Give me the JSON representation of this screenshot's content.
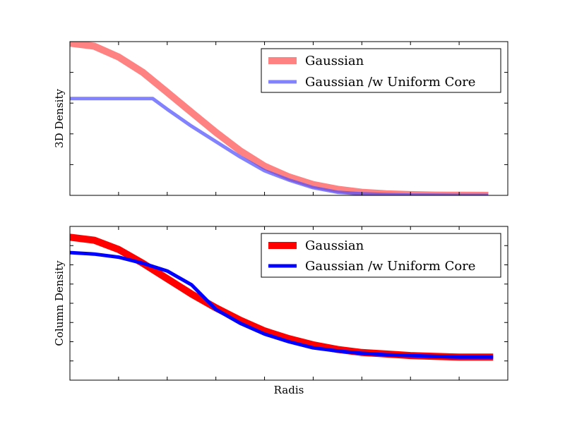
{
  "chart_data": [
    {
      "type": "line",
      "title": "",
      "xlabel": "",
      "ylabel": "3D Density",
      "xlim": [
        0,
        4.5
      ],
      "ylim": [
        0,
        1.0
      ],
      "grid": false,
      "legend": "top-right",
      "x_ticks": [
        0.5,
        1.0,
        1.5,
        2.0,
        2.5,
        3.0,
        3.5,
        4.0
      ],
      "y_ticks": [
        0.2,
        0.4,
        0.6,
        0.8,
        1.0
      ],
      "series": [
        {
          "name": "Gaussian",
          "color": "#ff4d4d",
          "style": "solid",
          "x": [
            0,
            0.25,
            0.5,
            0.75,
            1.0,
            1.25,
            1.5,
            1.75,
            2.0,
            2.25,
            2.5,
            2.75,
            3.0,
            3.25,
            3.5,
            3.75,
            4.0,
            4.3
          ],
          "y": [
            0.99,
            0.97,
            0.9,
            0.8,
            0.67,
            0.54,
            0.41,
            0.29,
            0.19,
            0.12,
            0.07,
            0.04,
            0.02,
            0.01,
            0.005,
            0.002,
            0.001,
            0.0
          ]
        },
        {
          "name": "Gaussian /w Uniform Core",
          "color": "#4d4dff",
          "style": "solid",
          "x": [
            0,
            0.5,
            0.85,
            1.0,
            1.25,
            1.5,
            1.75,
            2.0,
            2.25,
            2.5,
            2.75,
            3.0,
            3.25,
            3.5,
            3.75,
            4.0,
            4.3
          ],
          "y": [
            0.63,
            0.63,
            0.63,
            0.56,
            0.45,
            0.35,
            0.25,
            0.16,
            0.1,
            0.05,
            0.02,
            0.01,
            0.005,
            0.002,
            0.001,
            0.0,
            0.0
          ]
        }
      ]
    },
    {
      "type": "line",
      "title": "",
      "xlabel": "Radis",
      "ylabel": "Column Density",
      "xlim": [
        0,
        4.5
      ],
      "ylim": [
        0,
        1.0
      ],
      "grid": false,
      "legend": "top-right",
      "x_ticks": [
        0.5,
        1.0,
        1.5,
        2.0,
        2.5,
        3.0,
        3.5,
        4.0
      ],
      "y_ticks": [
        0.125,
        0.25,
        0.375,
        0.5,
        0.625,
        0.75,
        0.875
      ],
      "series": [
        {
          "name": "Gaussian",
          "color": "#ff0000",
          "style": "solid",
          "x": [
            0,
            0.25,
            0.5,
            0.75,
            1.0,
            1.25,
            1.5,
            1.75,
            2.0,
            2.25,
            2.5,
            2.75,
            3.0,
            3.25,
            3.5,
            3.75,
            4.0,
            4.35
          ],
          "y": [
            0.93,
            0.91,
            0.85,
            0.76,
            0.66,
            0.56,
            0.47,
            0.39,
            0.32,
            0.27,
            0.23,
            0.2,
            0.18,
            0.17,
            0.16,
            0.155,
            0.15,
            0.15
          ]
        },
        {
          "name": "Gaussian /w Uniform Core",
          "color": "#0000ff",
          "style": "solid",
          "x": [
            0,
            0.25,
            0.5,
            0.75,
            1.0,
            1.25,
            1.5,
            1.75,
            2.0,
            2.25,
            2.5,
            2.75,
            3.0,
            3.25,
            3.5,
            3.75,
            4.0,
            4.35
          ],
          "y": [
            0.83,
            0.82,
            0.8,
            0.76,
            0.71,
            0.62,
            0.46,
            0.37,
            0.3,
            0.25,
            0.21,
            0.19,
            0.175,
            0.165,
            0.16,
            0.155,
            0.15,
            0.15
          ]
        }
      ]
    }
  ]
}
